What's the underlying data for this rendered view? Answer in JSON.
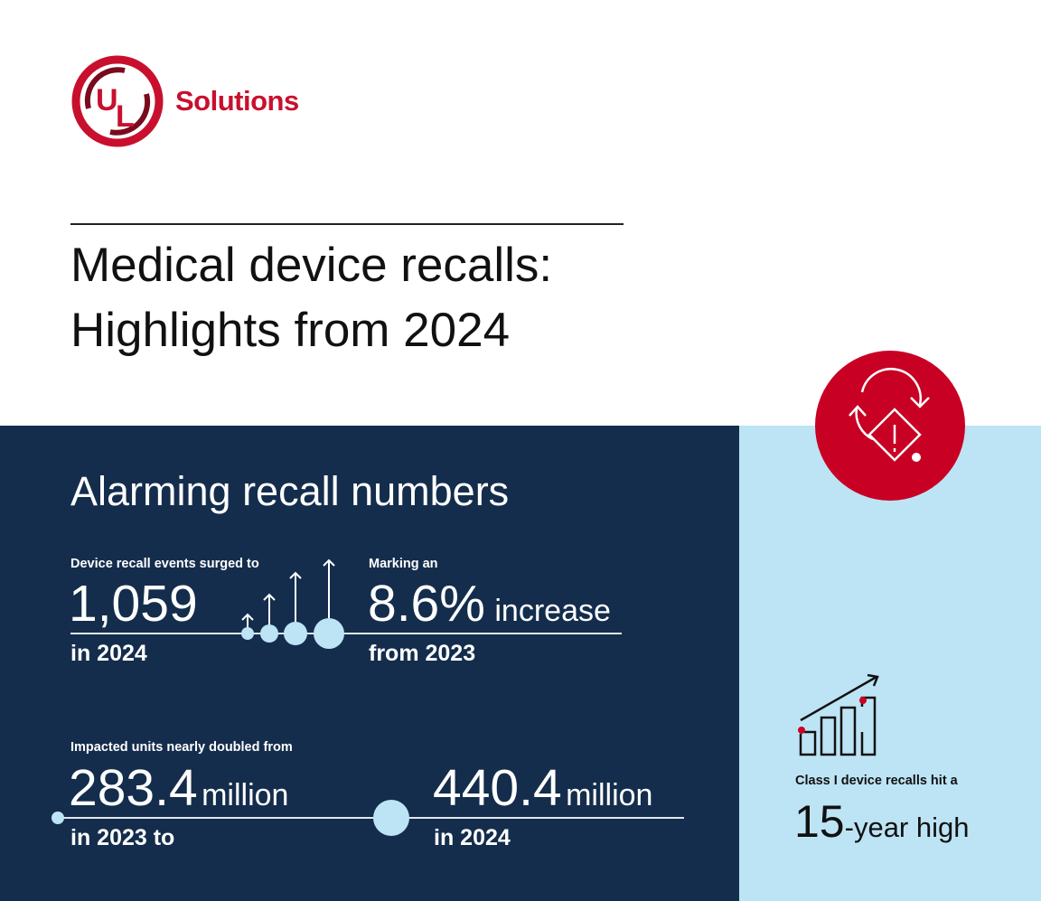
{
  "brand": {
    "logo_letters": "UL",
    "name": "Solutions",
    "color": "#c8102e"
  },
  "header": {
    "title_line1": "Medical device recalls:",
    "title_line2": "Highlights from 2024"
  },
  "colors": {
    "navy": "#142d4c",
    "light_blue": "#bde4f5",
    "red": "#c80024"
  },
  "section": {
    "heading": "Alarming recall numbers",
    "events": {
      "label": "Device recall events surged to",
      "value": "1,059",
      "sub": "in 2024"
    },
    "increase": {
      "label": "Marking an",
      "value": "8.6%",
      "unit": "increase",
      "sub": "from 2023"
    },
    "units": {
      "label": "Impacted units nearly doubled from",
      "from_value": "283.4",
      "from_unit": "million",
      "from_sub": "in 2023 to",
      "to_value": "440.4",
      "to_unit": "million",
      "to_sub": "in 2024"
    }
  },
  "sidebar": {
    "icon_top": "recall-warning-icon",
    "icon_chart": "rising-bar-chart-icon",
    "label": "Class I device recalls hit a",
    "value": "15",
    "unit": "-year high"
  }
}
